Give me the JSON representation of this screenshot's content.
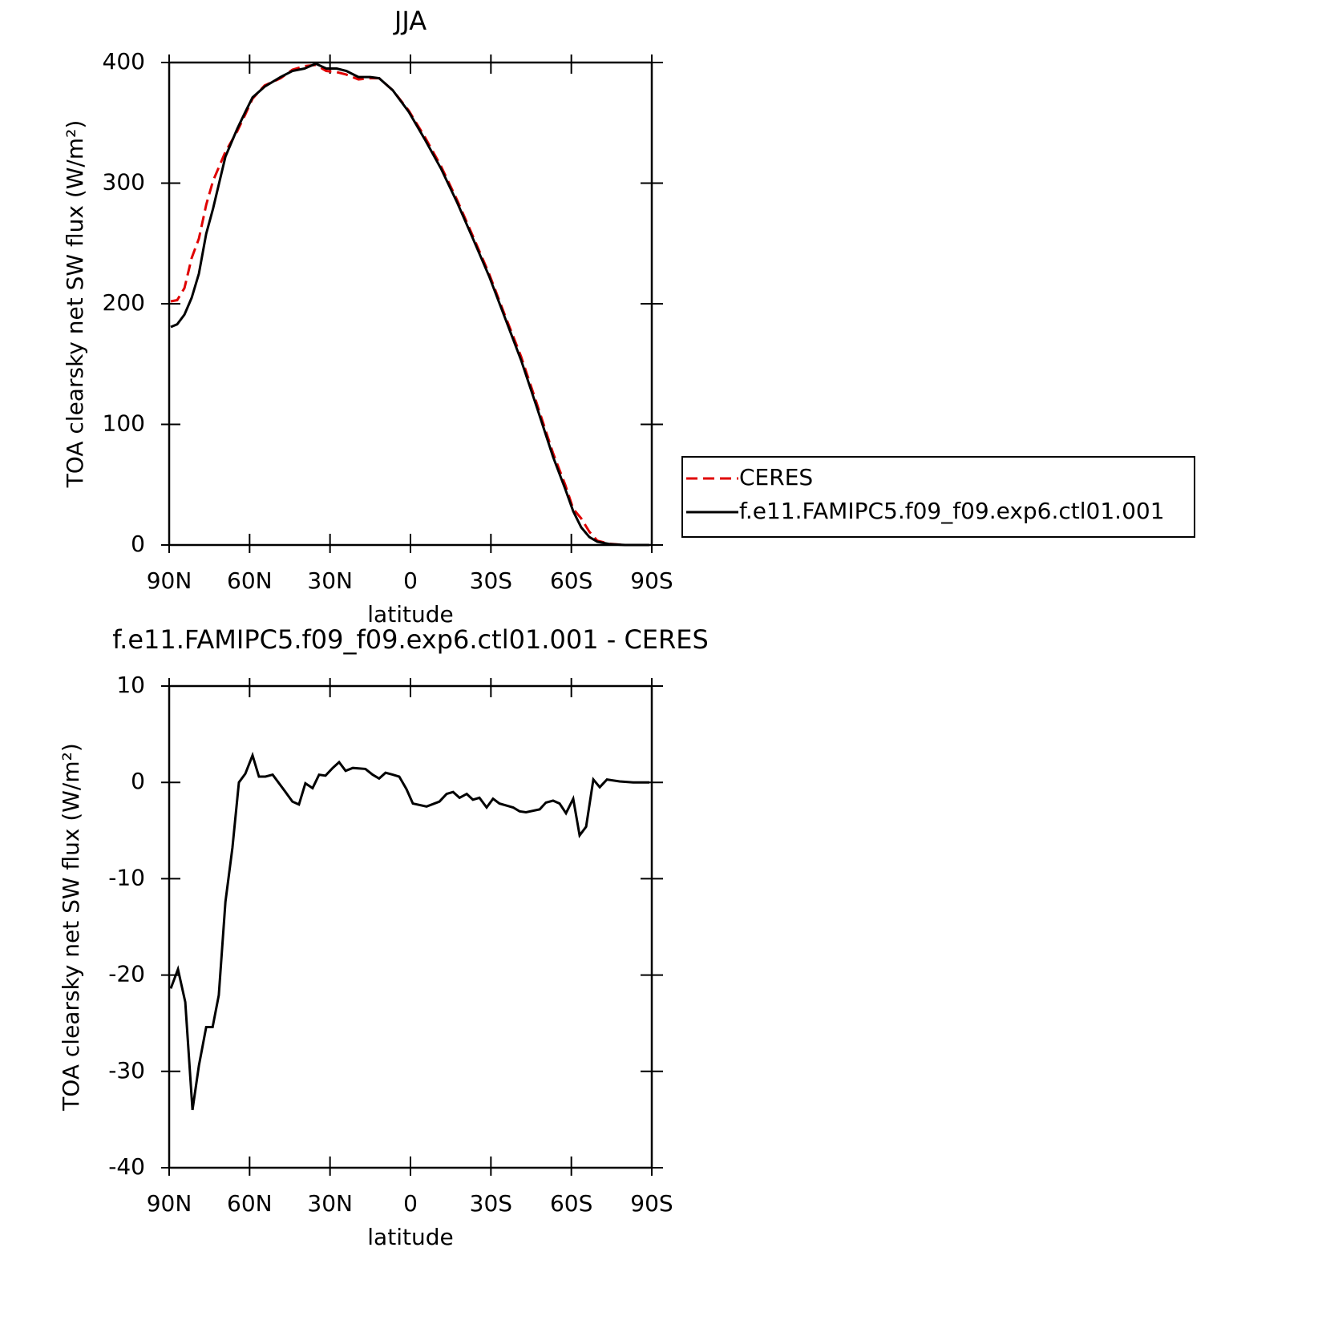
{
  "chart_data": [
    {
      "type": "line",
      "title": "JJA",
      "xlabel": "latitude",
      "ylabel": "TOA clearsky net SW flux (W/m²)",
      "xlim": [
        90,
        -90
      ],
      "xticks": [
        {
          "value": 90,
          "label": "90N"
        },
        {
          "value": 60,
          "label": "60N"
        },
        {
          "value": 30,
          "label": "30N"
        },
        0,
        {
          "value": -30,
          "label": "30S"
        },
        {
          "value": -60,
          "label": "60S"
        },
        {
          "value": -90,
          "label": "90S"
        }
      ],
      "ylim": [
        0,
        400
      ],
      "yticks": [
        0,
        100,
        200,
        300,
        400
      ],
      "x": [
        89.4,
        87,
        84.3,
        81.6,
        78.9,
        76.2,
        73.6,
        69,
        64.6,
        61.6,
        58.9,
        54.4,
        48.4,
        44,
        39.5,
        35.3,
        31.4,
        27.5,
        23.9,
        19.4,
        15,
        11.7,
        6.6,
        0.6,
        -5.4,
        -11.4,
        -17.4,
        -23.3,
        -29.3,
        -35.3,
        -41.3,
        -47.3,
        -53.2,
        -57.7,
        -60.7,
        -63.7,
        -66.7,
        -69.7,
        -74.2,
        -80,
        -89
      ],
      "series": [
        {
          "name": "CERES",
          "color": "#e00000",
          "dashed": true,
          "values": [
            202,
            203,
            213,
            238,
            254,
            282,
            302,
            326,
            343,
            357,
            370,
            381,
            387,
            394,
            397,
            398,
            393,
            392,
            390,
            386,
            387,
            387,
            377,
            360,
            338,
            314,
            286,
            256,
            225,
            190,
            156,
            116,
            76,
            50,
            30,
            22,
            11,
            3.5,
            1,
            0,
            0
          ]
        },
        {
          "name": "f.e11.FAMIPC5.f09_f09.exp6.ctl01.001",
          "color": "#000000",
          "dashed": false,
          "values": [
            180.7,
            183,
            191,
            205,
            225,
            258,
            279,
            322,
            345,
            359,
            371,
            380,
            388,
            393,
            395,
            399,
            395,
            395,
            393,
            388,
            388,
            387,
            377,
            359,
            336,
            312,
            284,
            254,
            223,
            188,
            153,
            113,
            73,
            46.5,
            28,
            14.6,
            6.6,
            2.7,
            0.7,
            0,
            0
          ]
        }
      ]
    },
    {
      "type": "line",
      "title": "f.e11.FAMIPC5.f09_f09.exp6.ctl01.001 - CERES",
      "xlabel": "latitude",
      "ylabel": "TOA clearsky net SW flux (W/m²)",
      "xlim": [
        90,
        -90
      ],
      "xticks": [
        {
          "value": 90,
          "label": "90N"
        },
        {
          "value": 60,
          "label": "60N"
        },
        {
          "value": 30,
          "label": "30N"
        },
        0,
        {
          "value": -30,
          "label": "30S"
        },
        {
          "value": -60,
          "label": "60S"
        },
        {
          "value": -90,
          "label": "90S"
        }
      ],
      "ylim": [
        -40,
        10
      ],
      "yticks": [
        -40,
        -30,
        -20,
        -10,
        0,
        10
      ],
      "x": [
        89.4,
        86.7,
        84,
        81.3,
        78.9,
        76.2,
        73.8,
        71.5,
        69,
        66.4,
        64,
        61.6,
        58.9,
        56.5,
        54.1,
        51.4,
        46.6,
        44,
        41.6,
        39.2,
        36.5,
        34.1,
        31.7,
        29,
        26.6,
        24.2,
        21.5,
        16.8,
        14.1,
        11.7,
        9.3,
        6.6,
        4.2,
        1.5,
        -0.9,
        -6,
        -10.8,
        -13.5,
        -15.9,
        -18.3,
        -21,
        -23.3,
        -25.7,
        -28.4,
        -30.8,
        -33.2,
        -38.3,
        -40.7,
        -43.1,
        -48.2,
        -50.5,
        -53.2,
        -55.6,
        -58,
        -60.7,
        -63.1,
        -65.5,
        -68.2,
        -70.6,
        -73.3,
        -78,
        -83.1,
        -89.1
      ],
      "color": "#000000",
      "values": [
        -21.4,
        -19.4,
        -22.8,
        -34,
        -29.4,
        -25.4,
        -25.4,
        -22.1,
        -12.4,
        -6.8,
        0,
        0.9,
        2.8,
        0.6,
        0.6,
        0.8,
        -1,
        -2,
        -2.3,
        -0.1,
        -0.6,
        0.8,
        0.7,
        1.5,
        2.1,
        1.2,
        1.5,
        1.4,
        0.8,
        0.4,
        1,
        0.8,
        0.6,
        -0.7,
        -2.2,
        -2.5,
        -2,
        -1.2,
        -1,
        -1.6,
        -1.2,
        -1.8,
        -1.6,
        -2.6,
        -1.7,
        -2.2,
        -2.6,
        -3,
        -3.1,
        -2.8,
        -2.1,
        -1.9,
        -2.2,
        -3.2,
        -1.7,
        -5.5,
        -4.6,
        0.3,
        -0.5,
        0.3,
        0.1,
        0,
        0
      ]
    }
  ]
}
